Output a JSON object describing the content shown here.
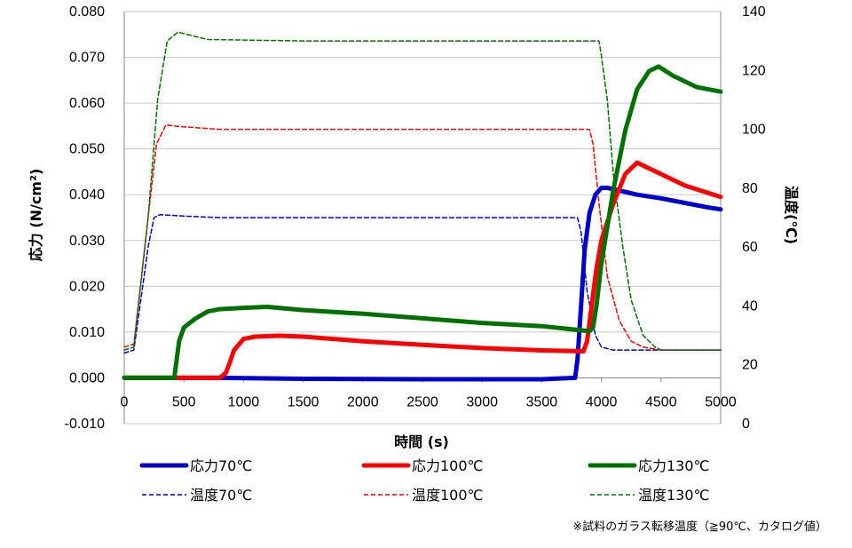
{
  "chart_data": {
    "type": "line",
    "xlabel": "時間 (s)",
    "ylabel": "応力 (N/cm²)",
    "y2label": "温度(℃)",
    "xlim": [
      0,
      5000
    ],
    "ylim": [
      -0.01,
      0.08
    ],
    "y2lim": [
      0,
      140
    ],
    "x_ticks": [
      "0",
      "500",
      "1000",
      "1500",
      "2000",
      "2500",
      "3000",
      "3500",
      "4000",
      "4500",
      "5000"
    ],
    "y_ticks": [
      "-0.010",
      "0.000",
      "0.010",
      "0.020",
      "0.030",
      "0.040",
      "0.050",
      "0.060",
      "0.070",
      "0.080"
    ],
    "y2_ticks": [
      "0",
      "20",
      "40",
      "60",
      "80",
      "100",
      "120",
      "140"
    ],
    "grid": "horizontal",
    "legend_position": "bottom",
    "note": "※試料のガラス転移温度（≧90℃、カタログ値）",
    "series": [
      {
        "name": "応力70℃",
        "axis": "left",
        "style": "solid",
        "color": "#0000cc",
        "x": [
          0,
          800,
          1500,
          2500,
          3500,
          3780,
          3800,
          3830,
          3860,
          3900,
          3950,
          4000,
          4050,
          4100,
          4300,
          4500,
          4700,
          4900,
          5000
        ],
        "y": [
          0.0,
          0.0,
          -0.0002,
          -0.0003,
          -0.0003,
          0.0,
          0.004,
          0.016,
          0.028,
          0.036,
          0.04,
          0.0415,
          0.0415,
          0.0412,
          0.04,
          0.0392,
          0.0382,
          0.0372,
          0.0368
        ]
      },
      {
        "name": "応力100℃",
        "axis": "left",
        "style": "solid",
        "color": "#ff0000",
        "x": [
          0,
          800,
          850,
          880,
          920,
          1000,
          1100,
          1300,
          1500,
          2000,
          2500,
          3000,
          3500,
          3850,
          3880,
          3920,
          3960,
          4000,
          4100,
          4200,
          4300,
          4500,
          4700,
          5000
        ],
        "y": [
          0.0,
          0.0,
          0.001,
          0.003,
          0.006,
          0.0085,
          0.009,
          0.0092,
          0.009,
          0.008,
          0.0072,
          0.0065,
          0.006,
          0.0058,
          0.008,
          0.016,
          0.024,
          0.03,
          0.038,
          0.0445,
          0.047,
          0.0445,
          0.042,
          0.0395
        ]
      },
      {
        "name": "応力130℃",
        "axis": "left",
        "style": "solid",
        "color": "#007000",
        "x": [
          0,
          420,
          440,
          460,
          500,
          600,
          700,
          800,
          1000,
          1200,
          1500,
          2000,
          2500,
          3000,
          3500,
          3900,
          3930,
          3960,
          4000,
          4100,
          4200,
          4300,
          4400,
          4480,
          4600,
          4800,
          5000
        ],
        "y": [
          0.0,
          0.0,
          0.004,
          0.008,
          0.011,
          0.013,
          0.0145,
          0.015,
          0.0153,
          0.0155,
          0.0148,
          0.014,
          0.013,
          0.012,
          0.0113,
          0.0102,
          0.011,
          0.016,
          0.025,
          0.041,
          0.054,
          0.063,
          0.067,
          0.068,
          0.066,
          0.0635,
          0.0625
        ]
      },
      {
        "name": "温度70℃",
        "axis": "right",
        "style": "dashed",
        "color": "#0000cc",
        "x": [
          0,
          80,
          200,
          250,
          300,
          500,
          800,
          1500,
          2500,
          3500,
          3800,
          3830,
          3880,
          3950,
          4000,
          4100,
          4300,
          4500,
          5000
        ],
        "y": [
          24,
          25,
          60,
          70,
          71,
          70.5,
          70,
          70,
          70,
          70,
          70,
          65,
          45,
          30,
          26,
          25,
          25,
          25,
          25
        ]
      },
      {
        "name": "温度100℃",
        "axis": "right",
        "style": "dashed",
        "color": "#ff0000",
        "x": [
          0,
          80,
          200,
          270,
          350,
          450,
          800,
          1500,
          2500,
          3500,
          3900,
          3930,
          3980,
          4050,
          4150,
          4250,
          4350,
          4500,
          5000
        ],
        "y": [
          26,
          27,
          70,
          95,
          101.5,
          101,
          100,
          100,
          100,
          100,
          100,
          95,
          75,
          50,
          35,
          28,
          26,
          25,
          25
        ]
      },
      {
        "name": "温度130℃",
        "axis": "right",
        "style": "dashed",
        "color": "#007000",
        "x": [
          0,
          80,
          200,
          280,
          360,
          450,
          700,
          1500,
          2500,
          3500,
          3980,
          4000,
          4050,
          4100,
          4180,
          4250,
          4350,
          4450,
          4500,
          5000
        ],
        "y": [
          25,
          26,
          70,
          110,
          130,
          133,
          130.5,
          130,
          130,
          130,
          130,
          125,
          110,
          85,
          60,
          42,
          30,
          26,
          25,
          25
        ]
      }
    ]
  }
}
